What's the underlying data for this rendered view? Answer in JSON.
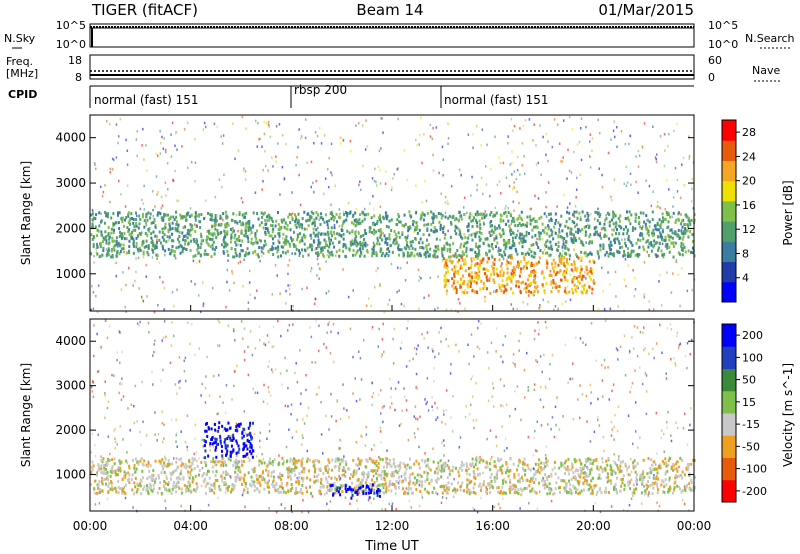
{
  "header": {
    "left_title": "TIGER (fitACF)",
    "center_title": "Beam 14",
    "right_title": "01/Mar/2015"
  },
  "top_panels": {
    "nsky": {
      "label": "N.Sky",
      "left_ticks": [
        "10^5",
        "10^0"
      ],
      "right_label": "N.Search",
      "right_ticks": [
        "10^5",
        "10^0"
      ]
    },
    "freq": {
      "label_line1": "Freq.",
      "label_line2": "[MHz]",
      "left_ticks": [
        "18",
        "8"
      ],
      "right_label": "Nave",
      "right_ticks": [
        "60",
        "0"
      ]
    },
    "cpid": {
      "label": "CPID",
      "segments": [
        {
          "label": "normal (fast) 151",
          "start_hour": 0,
          "end_hour": 8
        },
        {
          "label": "rbsp 200",
          "start_hour": 8,
          "end_hour": 14
        },
        {
          "label": "normal (fast) 151",
          "start_hour": 14,
          "end_hour": 24
        }
      ]
    }
  },
  "chart_data": [
    {
      "type": "heatmap",
      "title": "",
      "xlabel": "Time UT",
      "ylabel": "Slant Range [km]",
      "x_range_hours": [
        0,
        24
      ],
      "ylim": [
        180,
        4500
      ],
      "x_ticks": [
        "00:00",
        "04:00",
        "08:00",
        "12:00",
        "16:00",
        "20:00",
        "00:00"
      ],
      "y_ticks": [
        1000,
        2000,
        3000,
        4000
      ],
      "colorbar": {
        "label": "Power [dB]",
        "range": [
          0,
          30
        ],
        "ticks": [
          4,
          8,
          12,
          16,
          20,
          24,
          28
        ],
        "colors": [
          "#0000ff",
          "#203ca8",
          "#3a7da0",
          "#4fa06a",
          "#7fc04a",
          "#f0e000",
          "#f5a623",
          "#e85a0c",
          "#ff0000"
        ]
      },
      "features": [
        {
          "region": "main echo band",
          "time_hours": [
            0,
            24
          ],
          "range_km": [
            1400,
            2400
          ],
          "typical_power_db": 12
        },
        {
          "region": "strong echoes",
          "time_hours": [
            14,
            20
          ],
          "range_km": [
            600,
            1400
          ],
          "typical_power_db": 22
        }
      ]
    },
    {
      "type": "heatmap",
      "title": "",
      "xlabel": "Time UT",
      "ylabel": "Slant Range [km]",
      "x_range_hours": [
        0,
        24
      ],
      "ylim": [
        180,
        4500
      ],
      "x_ticks": [
        "00:00",
        "04:00",
        "08:00",
        "12:00",
        "16:00",
        "20:00",
        "00:00"
      ],
      "y_ticks": [
        1000,
        2000,
        3000,
        4000
      ],
      "colorbar": {
        "label": "Velocity [m s^-1]",
        "range": [
          -250,
          250
        ],
        "ticks": [
          "200",
          "100",
          "50",
          "15",
          "-15",
          "-50",
          "-100",
          "-200"
        ],
        "colors": [
          "#ff0000",
          "#e85a0c",
          "#f0a020",
          "#c8c8c8",
          "#7fc04a",
          "#3a8a3a",
          "#2040c0",
          "#0000ff"
        ]
      },
      "features": [
        {
          "region": "ground scatter band",
          "time_hours": [
            0,
            24
          ],
          "range_km": [
            600,
            1400
          ],
          "typical_velocity": 0
        },
        {
          "region": "strong positive velocity",
          "time_hours": [
            4.5,
            6.5
          ],
          "range_km": [
            1400,
            2200
          ],
          "typical_velocity": 200
        },
        {
          "region": "positive velocity patch",
          "time_hours": [
            9.5,
            11.5
          ],
          "range_km": [
            500,
            800
          ],
          "typical_velocity": 200
        }
      ]
    }
  ]
}
